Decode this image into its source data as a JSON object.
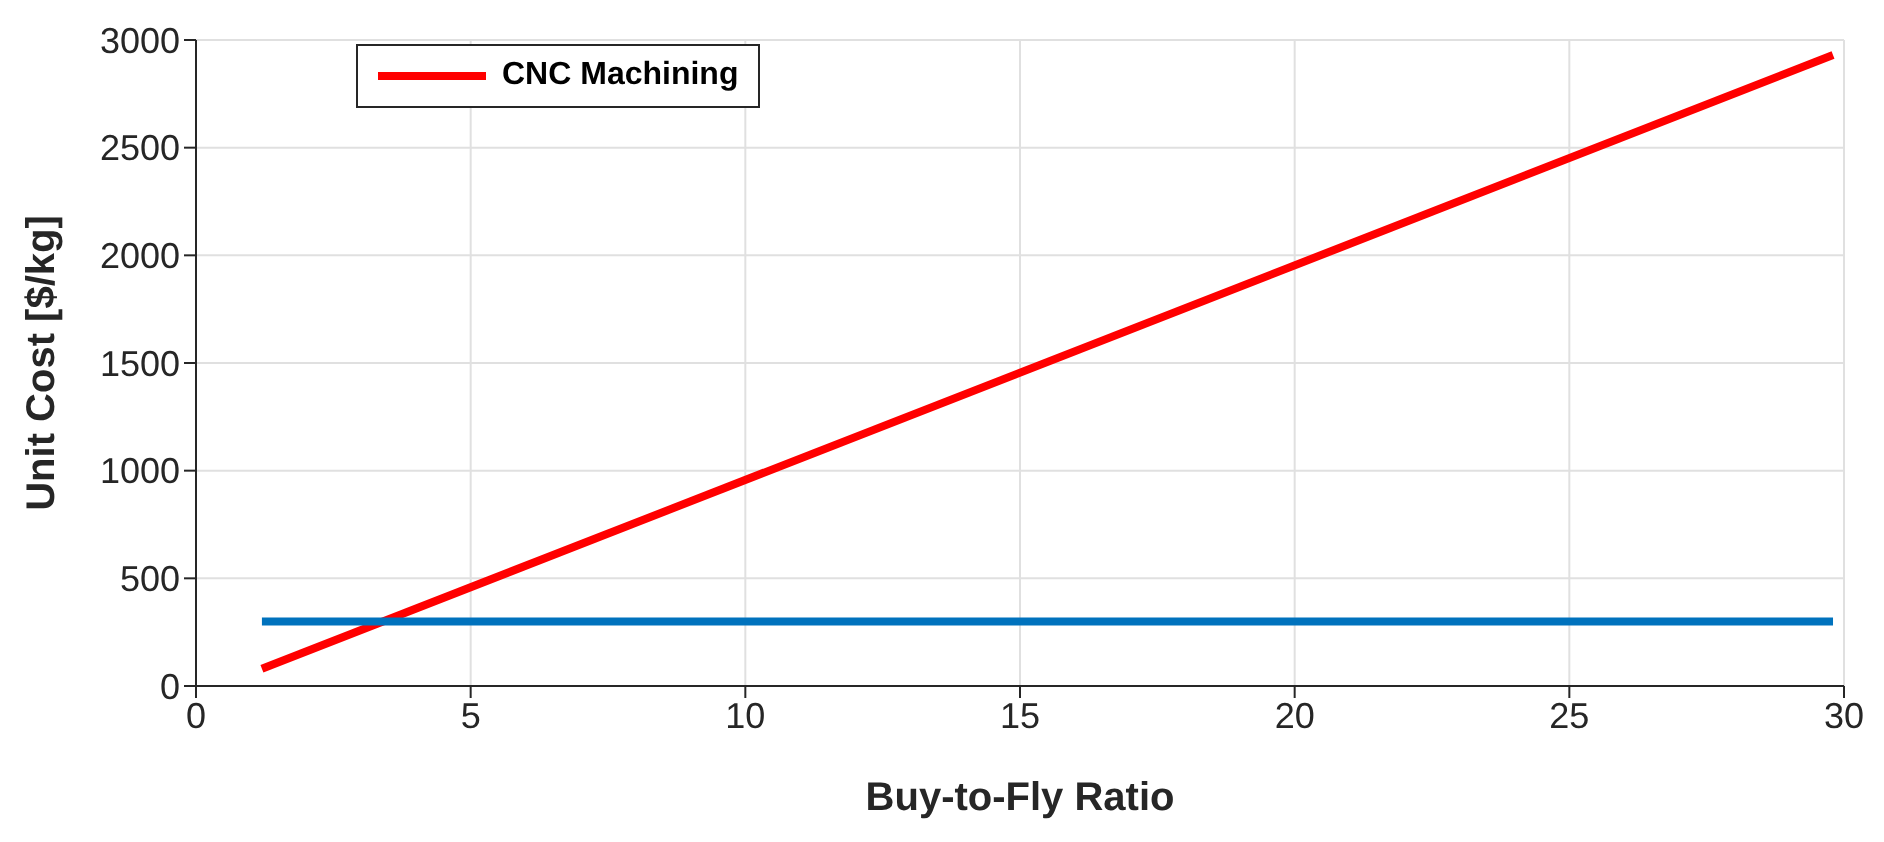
{
  "chart_data": {
    "type": "line",
    "xlabel": "Buy-to-Fly Ratio",
    "ylabel": "Unit Cost [$/kg]",
    "x": [
      1.2,
      29.8
    ],
    "series": [
      {
        "name": "CNC Machining",
        "color": "#ff0000",
        "values": [
          80,
          2930
        ]
      },
      {
        "color": "#0072bd",
        "values": [
          300,
          300
        ]
      }
    ],
    "xlim": [
      0,
      30
    ],
    "xticks": [
      0,
      5,
      10,
      15,
      20,
      25,
      30
    ],
    "ylim": [
      0,
      3000
    ],
    "yticks": [
      0,
      500,
      1000,
      1500,
      2000,
      2500,
      3000
    ],
    "grid": true,
    "legend": "top left"
  }
}
